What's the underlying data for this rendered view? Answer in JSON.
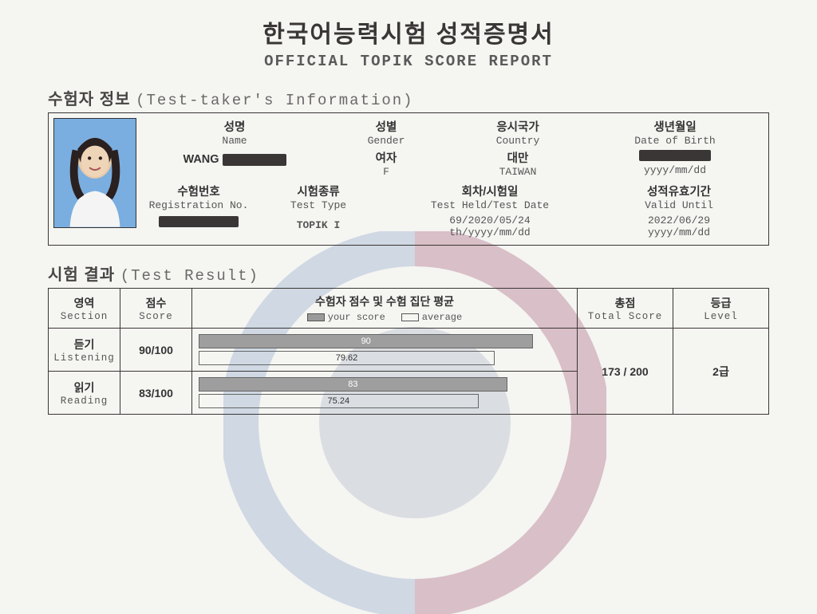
{
  "title": {
    "kr": "한국어능력시험 성적증명서",
    "en": "OFFICIAL TOPIK SCORE REPORT"
  },
  "sections": {
    "info": {
      "kr": "수험자 정보",
      "en": "(Test-taker's Information)"
    },
    "result": {
      "kr": "시험 결과",
      "en": "(Test Result)"
    }
  },
  "info_labels": {
    "name": {
      "kr": "성명",
      "en": "Name"
    },
    "gender": {
      "kr": "성별",
      "en": "Gender"
    },
    "country": {
      "kr": "응시국가",
      "en": "Country"
    },
    "dob": {
      "kr": "생년월일",
      "en": "Date of Birth"
    },
    "regno": {
      "kr": "수험번호",
      "en": "Registration No."
    },
    "testtype": {
      "kr": "시험종류",
      "en": "Test Type"
    },
    "testdate": {
      "kr": "회차/시험일",
      "en": "Test Held/Test Date"
    },
    "valid": {
      "kr": "성적유효기간",
      "en": "Valid Until"
    }
  },
  "info_values": {
    "name_partial": "WANG",
    "gender": {
      "kr": "여자",
      "en": "F"
    },
    "country": {
      "kr": "대만",
      "en": "TAIWAN"
    },
    "dob": {
      "en": "yyyy/mm/dd"
    },
    "testtype": "TOPIK I",
    "testdate": {
      "val": "69/2020/05/24",
      "fmt": "th/yyyy/mm/dd"
    },
    "valid": {
      "val": "2022/06/29",
      "fmt": "yyyy/mm/dd"
    }
  },
  "result_headers": {
    "section": {
      "kr": "영역",
      "en": "Section"
    },
    "score": {
      "kr": "점수",
      "en": "Score"
    },
    "chart": {
      "kr": "수험자 점수 및 수험 집단 평균"
    },
    "legend_your": "your score",
    "legend_avg": "average",
    "total": {
      "kr": "총점",
      "en": "Total Score"
    },
    "level": {
      "kr": "등급",
      "en": "Level"
    }
  },
  "result_rows": [
    {
      "section_kr": "듣기",
      "section_en": "Listening",
      "score": "90/100",
      "your": 90,
      "avg": 79.62,
      "your_label": "90",
      "avg_label": "79.62"
    },
    {
      "section_kr": "읽기",
      "section_en": "Reading",
      "score": "83/100",
      "your": 83,
      "avg": 75.24,
      "your_label": "83",
      "avg_label": "75.24"
    }
  ],
  "total_score": "173 / 200",
  "level": "2급",
  "chart_max": 100,
  "colors": {
    "your_bar": "#9e9e9e",
    "avg_bar": "#ffffff",
    "border": "#3a3636",
    "wm_blue": "#5c7fb5",
    "wm_red": "#c75a6e"
  }
}
